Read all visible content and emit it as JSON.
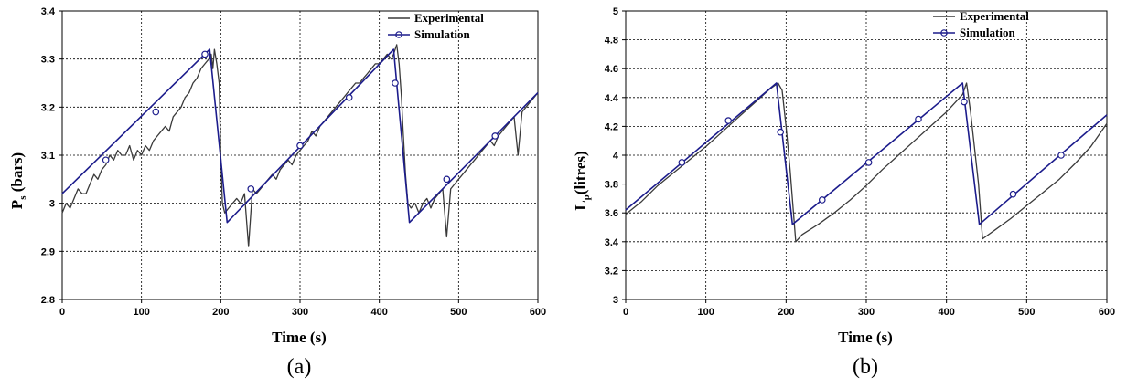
{
  "chart_data": [
    {
      "id": "a",
      "type": "line",
      "caption": "(a)",
      "xlabel": "Time (s)",
      "ylabel_main": "P",
      "ylabel_sub": "s",
      "ylabel_rest": " (bars)",
      "xlim": [
        0,
        600
      ],
      "ylim": [
        2.8,
        3.4
      ],
      "xticks": [
        0,
        100,
        200,
        300,
        400,
        500,
        600
      ],
      "yticks": [
        2.8,
        2.9,
        3.0,
        3.1,
        3.2,
        3.3,
        3.4
      ],
      "ytick_labels": [
        "2.8",
        "2.9",
        "3",
        "3.1",
        "3.2",
        "3.3",
        "3.4"
      ],
      "grid": true,
      "legend_position": "top-right",
      "series": [
        {
          "name": "Experimental",
          "color": "#3a3a3a",
          "marker": "none",
          "x": [
            0,
            5,
            10,
            15,
            20,
            25,
            30,
            35,
            40,
            45,
            50,
            55,
            60,
            65,
            70,
            75,
            80,
            85,
            90,
            95,
            100,
            105,
            110,
            115,
            120,
            125,
            130,
            135,
            140,
            145,
            150,
            155,
            160,
            165,
            170,
            175,
            180,
            185,
            188,
            190,
            192,
            195,
            198,
            200,
            202,
            205,
            210,
            215,
            220,
            225,
            230,
            235,
            240,
            245,
            250,
            255,
            260,
            265,
            270,
            275,
            280,
            285,
            290,
            295,
            300,
            305,
            310,
            315,
            320,
            325,
            330,
            335,
            340,
            345,
            350,
            355,
            360,
            365,
            370,
            375,
            380,
            385,
            390,
            395,
            400,
            405,
            410,
            415,
            418,
            420,
            422,
            425,
            428,
            430,
            433,
            436,
            440,
            445,
            450,
            455,
            460,
            465,
            470,
            475,
            480,
            485,
            490,
            495,
            500,
            505,
            510,
            515,
            520,
            525,
            530,
            535,
            540,
            545,
            550,
            555,
            560,
            565,
            570,
            575,
            580,
            585,
            590,
            595,
            600
          ],
          "y": [
            2.98,
            3.0,
            2.99,
            3.01,
            3.03,
            3.02,
            3.02,
            3.04,
            3.06,
            3.05,
            3.07,
            3.08,
            3.1,
            3.09,
            3.11,
            3.1,
            3.1,
            3.12,
            3.09,
            3.11,
            3.1,
            3.12,
            3.11,
            3.13,
            3.14,
            3.15,
            3.16,
            3.15,
            3.18,
            3.19,
            3.2,
            3.22,
            3.23,
            3.25,
            3.26,
            3.28,
            3.29,
            3.3,
            3.31,
            3.28,
            3.32,
            3.29,
            3.25,
            3.1,
            3.0,
            2.98,
            2.99,
            3.0,
            3.01,
            3.0,
            3.02,
            2.91,
            3.03,
            3.02,
            3.03,
            3.04,
            3.05,
            3.06,
            3.05,
            3.07,
            3.08,
            3.09,
            3.08,
            3.1,
            3.11,
            3.12,
            3.13,
            3.15,
            3.14,
            3.16,
            3.17,
            3.18,
            3.19,
            3.2,
            3.21,
            3.22,
            3.23,
            3.24,
            3.25,
            3.25,
            3.26,
            3.27,
            3.28,
            3.29,
            3.29,
            3.3,
            3.31,
            3.3,
            3.31,
            3.32,
            3.33,
            3.29,
            3.22,
            3.15,
            3.06,
            3.0,
            2.99,
            3.0,
            2.98,
            3.0,
            3.01,
            2.99,
            3.01,
            3.02,
            3.03,
            2.93,
            3.03,
            3.04,
            3.05,
            3.06,
            3.07,
            3.08,
            3.09,
            3.1,
            3.11,
            3.12,
            3.13,
            3.12,
            3.14,
            3.15,
            3.16,
            3.17,
            3.18,
            3.1,
            3.19,
            3.2,
            3.21,
            3.22,
            3.23
          ]
        },
        {
          "name": "Simulation",
          "color": "#1c1c8c",
          "marker": "circle",
          "x": [
            0,
            186,
            208,
            418,
            438,
            600
          ],
          "y": [
            3.02,
            3.32,
            2.96,
            3.32,
            2.96,
            3.23
          ],
          "marker_x": [
            55,
            118,
            180,
            238,
            300,
            362,
            420,
            485,
            546
          ],
          "marker_y": [
            3.09,
            3.19,
            3.31,
            3.03,
            3.12,
            3.22,
            3.25,
            3.05,
            3.14
          ]
        }
      ]
    },
    {
      "id": "b",
      "type": "line",
      "caption": "(b)",
      "xlabel": "Time (s)",
      "ylabel_main": "L",
      "ylabel_sub": "p",
      "ylabel_rest": "(litres)",
      "xlim": [
        0,
        600
      ],
      "ylim": [
        3.0,
        5.0
      ],
      "xticks": [
        0,
        100,
        200,
        300,
        400,
        500,
        600
      ],
      "yticks": [
        3.0,
        3.2,
        3.4,
        3.6,
        3.8,
        4.0,
        4.2,
        4.4,
        4.6,
        4.8,
        5.0
      ],
      "ytick_labels": [
        "3",
        "3.2",
        "3.4",
        "3.6",
        "3.8",
        "4",
        "4.2",
        "4.4",
        "4.6",
        "4.8",
        "5"
      ],
      "grid": true,
      "legend_position": "top-right",
      "series": [
        {
          "name": "Experimental",
          "color": "#3a3a3a",
          "marker": "none",
          "x": [
            0,
            20,
            40,
            60,
            80,
            100,
            120,
            140,
            160,
            180,
            190,
            195,
            200,
            205,
            212,
            220,
            240,
            260,
            280,
            300,
            320,
            340,
            360,
            380,
            400,
            420,
            425,
            430,
            440,
            445,
            460,
            480,
            500,
            520,
            540,
            560,
            580,
            600
          ],
          "y": [
            3.59,
            3.68,
            3.79,
            3.88,
            3.97,
            4.06,
            4.16,
            4.26,
            4.36,
            4.46,
            4.5,
            4.45,
            4.2,
            3.9,
            3.4,
            3.45,
            3.52,
            3.6,
            3.69,
            3.79,
            3.9,
            4.0,
            4.1,
            4.2,
            4.3,
            4.42,
            4.5,
            4.3,
            3.8,
            3.42,
            3.48,
            3.56,
            3.65,
            3.74,
            3.83,
            3.94,
            4.06,
            4.22
          ]
        },
        {
          "name": "Simulation",
          "color": "#1c1c8c",
          "marker": "circle",
          "x": [
            0,
            188,
            208,
            420,
            441,
            600
          ],
          "y": [
            3.62,
            4.5,
            3.52,
            4.5,
            3.52,
            4.28
          ],
          "marker_x": [
            70,
            128,
            193,
            245,
            303,
            365,
            422,
            483,
            543
          ],
          "marker_y": [
            3.95,
            4.24,
            4.16,
            3.69,
            3.95,
            4.25,
            4.37,
            3.73,
            4.0
          ]
        }
      ]
    }
  ]
}
